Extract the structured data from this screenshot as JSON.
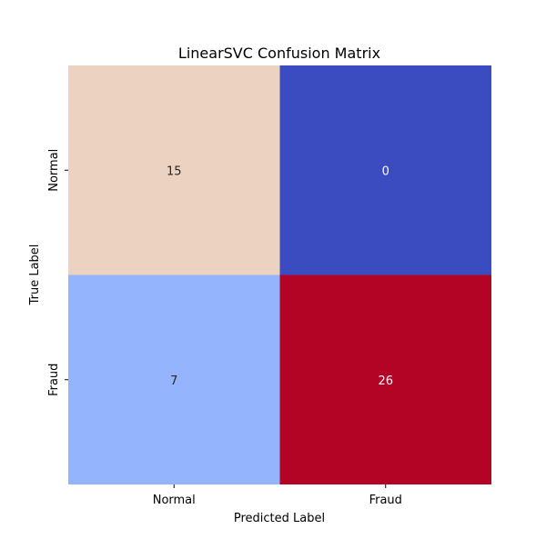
{
  "chart_data": {
    "type": "heatmap",
    "title": "LinearSVC Confusion Matrix",
    "xlabel": "Predicted Label",
    "ylabel": "True Label",
    "x_categories": [
      "Normal",
      "Fraud"
    ],
    "y_categories": [
      "Normal",
      "Fraud"
    ],
    "values": [
      [
        15,
        0
      ],
      [
        7,
        26
      ]
    ],
    "colormap": "coolwarm",
    "cell_colors": [
      [
        "#ecd2c1",
        "#3b4cc0"
      ],
      [
        "#94b5fe",
        "#b40426"
      ]
    ],
    "annotation_colors": [
      [
        "#262626",
        "#ffffff"
      ],
      [
        "#262626",
        "#ffffff"
      ]
    ],
    "colorbar": false,
    "grid": false
  }
}
